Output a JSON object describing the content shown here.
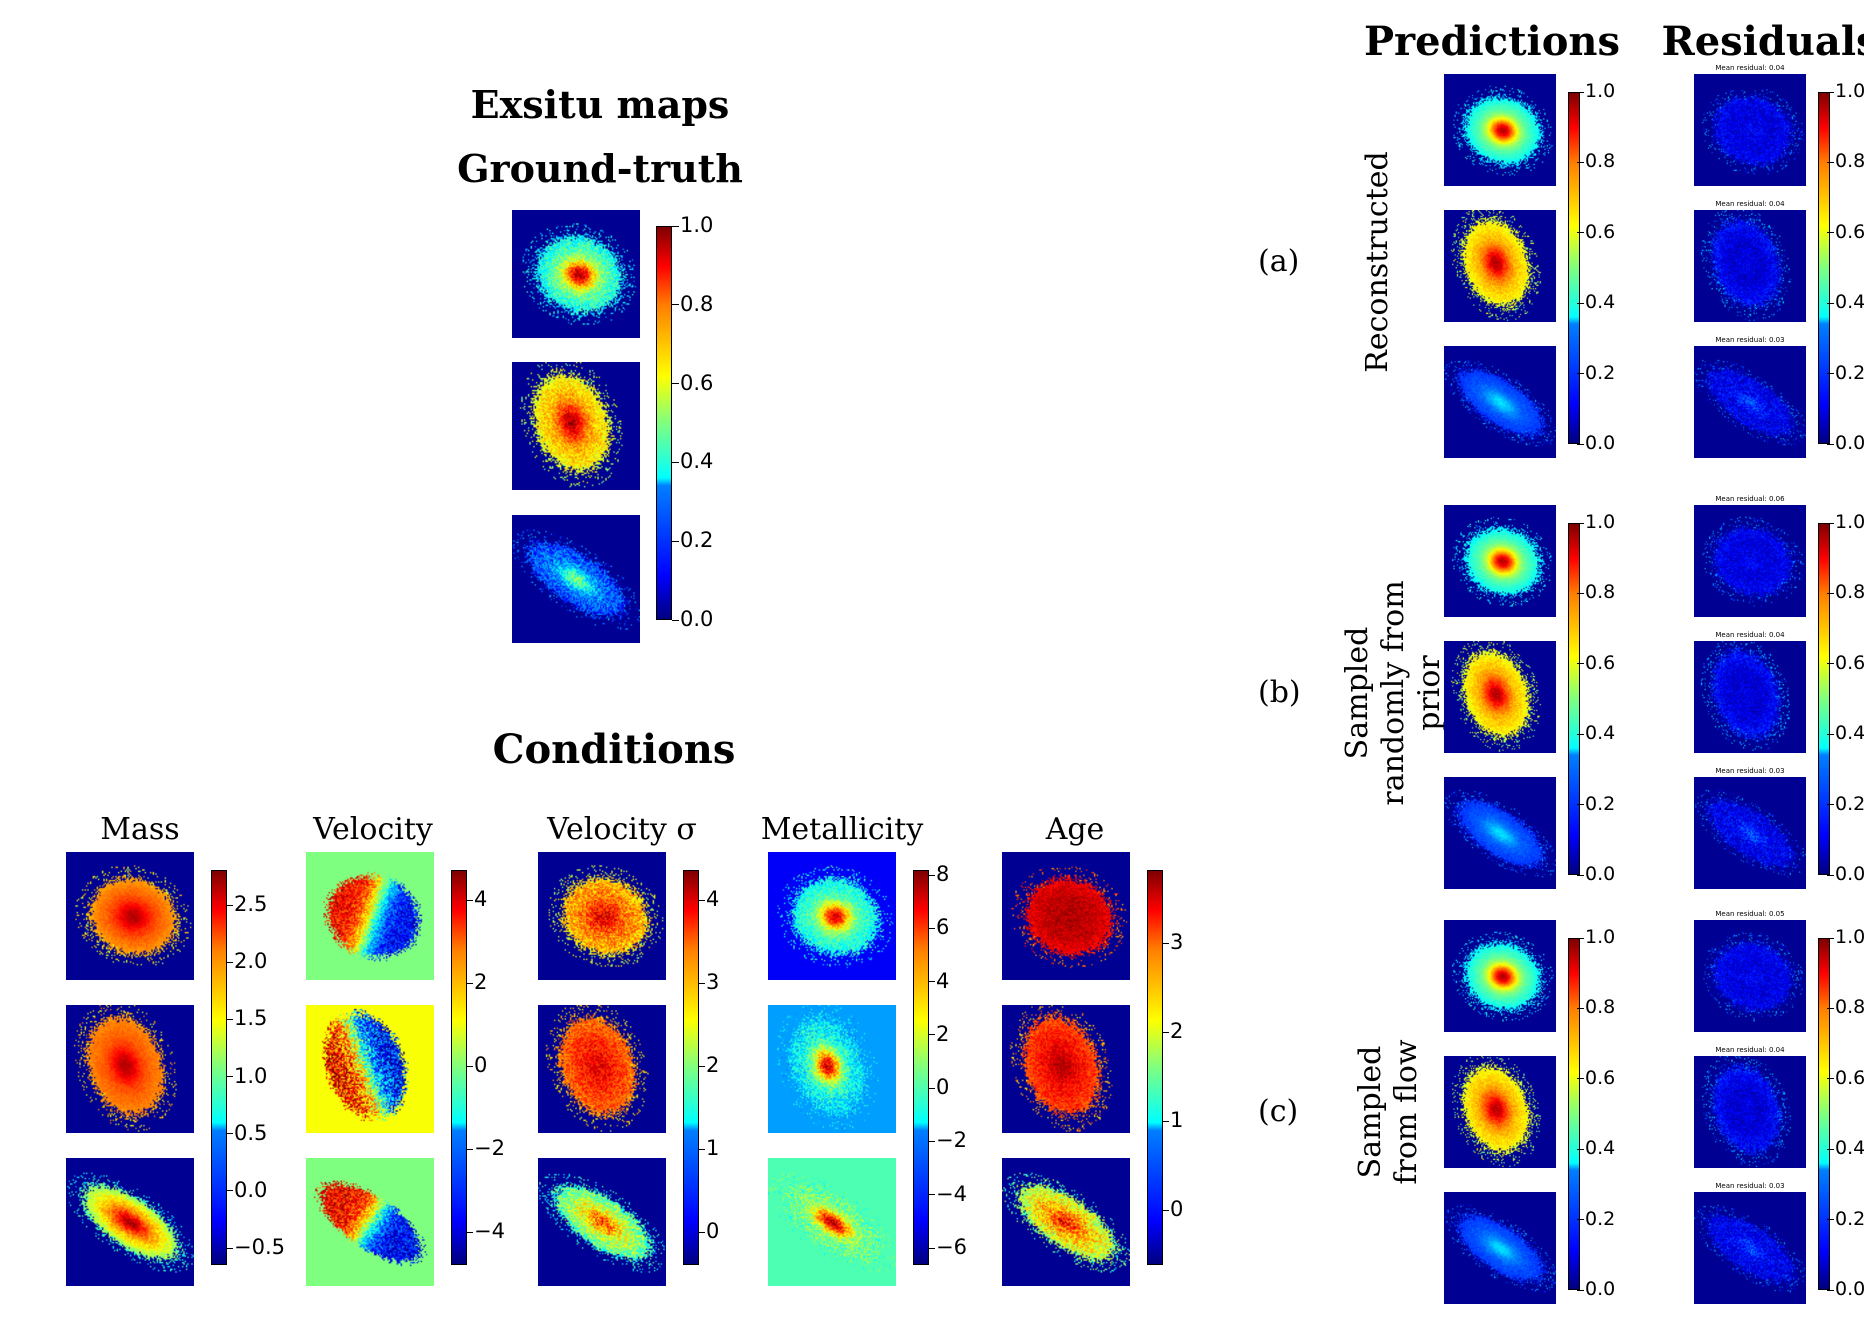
{
  "figure": {
    "title_main": "Exsitu maps",
    "title_gt": "Ground-truth",
    "title_conditions": "Conditions",
    "title_predictions": "Predictions",
    "title_residuals": "Residuals"
  },
  "conditions": {
    "columns": [
      {
        "label": "Mass",
        "ticks": [
          "2.5",
          "2.0",
          "1.5",
          "1.0",
          "0.5",
          "0.0",
          "−0.5"
        ]
      },
      {
        "label": "Velocity",
        "ticks": [
          "4",
          "2",
          "0",
          "−2",
          "−4"
        ]
      },
      {
        "label": "Velocity σ",
        "ticks": [
          "4",
          "3",
          "2",
          "1",
          "0"
        ]
      },
      {
        "label": "Metallicity",
        "ticks": [
          "8",
          "6",
          "4",
          "2",
          "0",
          "−2",
          "−4",
          "−6"
        ]
      },
      {
        "label": "Age",
        "ticks": [
          "3",
          "2",
          "1",
          "0"
        ]
      }
    ]
  },
  "colorbar_unit_ticks": [
    "1.0",
    "0.8",
    "0.6",
    "0.4",
    "0.2",
    "0.0"
  ],
  "rows": [
    {
      "tag": "(a)",
      "label_lines": [
        "Reconstructed"
      ],
      "residuals": [
        "Mean residual: 0.04",
        "Mean residual: 0.04",
        "Mean residual: 0.03"
      ]
    },
    {
      "tag": "(b)",
      "label_lines": [
        "Sampled",
        "randomly from",
        "prior"
      ],
      "residuals": [
        "Mean residual: 0.06",
        "Mean residual: 0.04",
        "Mean residual: 0.03"
      ]
    },
    {
      "tag": "(c)",
      "label_lines": [
        "Sampled",
        "from flow"
      ],
      "residuals": [
        "Mean residual: 0.05",
        "Mean residual: 0.04",
        "Mean residual: 0.03"
      ]
    }
  ],
  "colormap": "jet"
}
